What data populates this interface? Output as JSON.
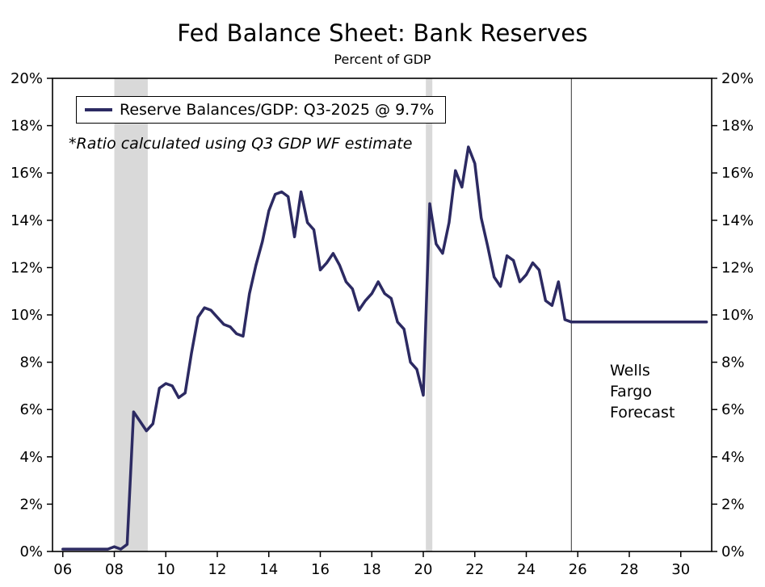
{
  "page": {
    "title": "Fed Balance Sheet: Bank Reserves",
    "subtitle": "Percent of GDP"
  },
  "legend": {
    "label": "Reserve Balances/GDP: Q3-2025 @ 9.7%"
  },
  "note": "*Ratio calculated using Q3 GDP WF estimate",
  "forecast_label": "Wells\nFargo\nForecast",
  "colors": {
    "line": "#2c2a62",
    "recession_band": "#d9d9d9",
    "axis": "#000000",
    "divider": "#333333"
  },
  "chart_data": {
    "type": "line",
    "title": "Fed Balance Sheet: Bank Reserves",
    "subtitle": "Percent of GDP",
    "legend": [
      "Reserve Balances/GDP: Q3-2025 @ 9.7%"
    ],
    "legend_position": "top-left",
    "annotations": [
      "*Ratio calculated using Q3 GDP WF estimate",
      "Wells Fargo Forecast"
    ],
    "grid": false,
    "ylabel": "Percent of GDP",
    "ylim": [
      0,
      20
    ],
    "yticks": [
      0,
      2,
      4,
      6,
      8,
      10,
      12,
      14,
      16,
      18,
      20
    ],
    "ytick_labels": [
      "0%",
      "2%",
      "4%",
      "6%",
      "8%",
      "10%",
      "12%",
      "14%",
      "16%",
      "18%",
      "20%"
    ],
    "xlim": [
      2005.6,
      2031.2
    ],
    "xticks": [
      2006,
      2008,
      2010,
      2012,
      2014,
      2016,
      2018,
      2020,
      2022,
      2024,
      2026,
      2028,
      2030
    ],
    "xtick_labels": [
      "06",
      "08",
      "10",
      "12",
      "14",
      "16",
      "18",
      "20",
      "22",
      "24",
      "26",
      "28",
      "30"
    ],
    "recession_bands": [
      [
        2008.0,
        2009.3
      ],
      [
        2020.1,
        2020.35
      ]
    ],
    "forecast_start": 2025.75,
    "series": [
      {
        "name": "Reserve Balances/GDP (history)",
        "x": [
          2006.0,
          2006.25,
          2006.5,
          2006.75,
          2007.0,
          2007.25,
          2007.5,
          2007.75,
          2008.0,
          2008.25,
          2008.5,
          2008.75,
          2009.0,
          2009.25,
          2009.5,
          2009.75,
          2010.0,
          2010.25,
          2010.5,
          2010.75,
          2011.0,
          2011.25,
          2011.5,
          2011.75,
          2012.0,
          2012.25,
          2012.5,
          2012.75,
          2013.0,
          2013.25,
          2013.5,
          2013.75,
          2014.0,
          2014.25,
          2014.5,
          2014.75,
          2015.0,
          2015.25,
          2015.5,
          2015.75,
          2016.0,
          2016.25,
          2016.5,
          2016.75,
          2017.0,
          2017.25,
          2017.5,
          2017.75,
          2018.0,
          2018.25,
          2018.5,
          2018.75,
          2019.0,
          2019.25,
          2019.5,
          2019.75,
          2020.0,
          2020.25,
          2020.5,
          2020.75,
          2021.0,
          2021.25,
          2021.5,
          2021.75,
          2022.0,
          2022.25,
          2022.5,
          2022.75,
          2023.0,
          2023.25,
          2023.5,
          2023.75,
          2024.0,
          2024.25,
          2024.5,
          2024.75,
          2025.0,
          2025.25,
          2025.5,
          2025.75
        ],
        "values": [
          0.1,
          0.1,
          0.1,
          0.1,
          0.1,
          0.1,
          0.1,
          0.1,
          0.2,
          0.1,
          0.3,
          5.9,
          5.5,
          5.1,
          5.4,
          6.9,
          7.1,
          7.0,
          6.5,
          6.7,
          8.4,
          9.9,
          10.3,
          10.2,
          9.9,
          9.6,
          9.5,
          9.2,
          9.1,
          10.9,
          12.1,
          13.1,
          14.4,
          15.1,
          15.2,
          15.0,
          13.3,
          15.2,
          13.9,
          13.6,
          11.9,
          12.2,
          12.6,
          12.1,
          11.4,
          11.1,
          10.2,
          10.6,
          10.9,
          11.4,
          10.9,
          10.7,
          9.7,
          9.4,
          8.0,
          7.7,
          6.6,
          14.7,
          13.0,
          12.6,
          13.9,
          16.1,
          15.4,
          17.1,
          16.4,
          14.1,
          12.9,
          11.6,
          11.2,
          12.5,
          12.3,
          11.4,
          11.7,
          12.2,
          11.9,
          10.6,
          10.4,
          11.4,
          9.8,
          9.7
        ]
      },
      {
        "name": "Wells Fargo Forecast",
        "x": [
          2025.75,
          2031.0
        ],
        "values": [
          9.7,
          9.7
        ]
      }
    ]
  }
}
